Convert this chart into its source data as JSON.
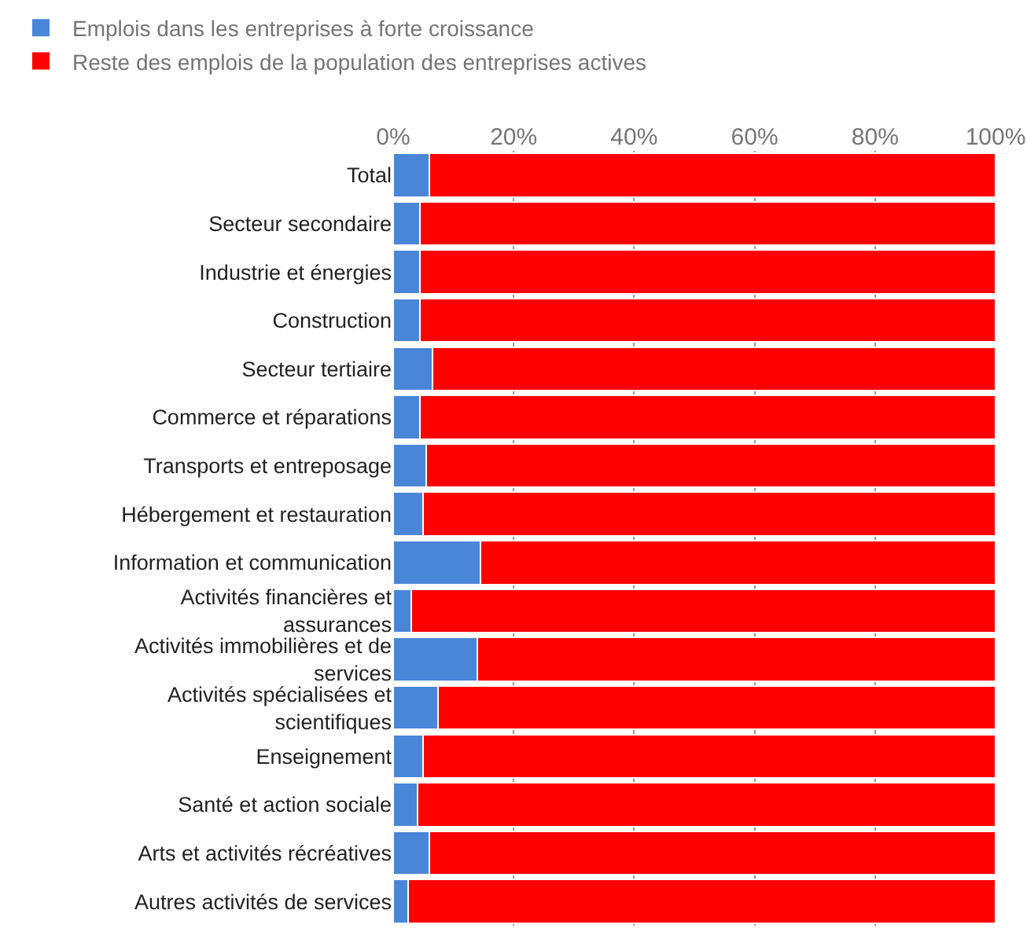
{
  "chart_data": {
    "type": "bar",
    "orientation": "horizontal",
    "stacked": true,
    "categories": [
      "Total",
      "Secteur secondaire",
      "Industrie et énergies",
      "Construction",
      "Secteur tertiaire",
      "Commerce et réparations",
      "Transports et entreposage",
      "Hébergement et restauration",
      "Information et communication",
      "Activités financières et assurances",
      "Activités immobilières et de services",
      "Activités spécialisées et scientifiques",
      "Enseignement",
      "Santé et action sociale",
      "Arts et activités récréatives",
      "Autres activités de services"
    ],
    "series": [
      {
        "name": "Emplois dans les entreprises à forte croissance",
        "color": "#4a86d8",
        "values": [
          6,
          4.5,
          4.5,
          4.5,
          6.5,
          4.5,
          5.5,
          5,
          14.5,
          3,
          14,
          7.5,
          5,
          4,
          6,
          2.5
        ]
      },
      {
        "name": "Reste des emplois de la population des entreprises actives",
        "color": "#ff0000",
        "values": [
          94,
          95.5,
          95.5,
          95.5,
          93.5,
          95.5,
          94.5,
          95,
          85.5,
          97,
          86,
          92.5,
          95,
          96,
          94,
          97.5
        ]
      }
    ],
    "xlim": [
      0,
      100
    ],
    "xticks": [
      {
        "value": 0,
        "label": "0%"
      },
      {
        "value": 20,
        "label": "20%"
      },
      {
        "value": 40,
        "label": "40%"
      },
      {
        "value": 60,
        "label": "60%"
      },
      {
        "value": 80,
        "label": "80%"
      },
      {
        "value": 100,
        "label": "100%"
      }
    ],
    "grid": "x",
    "legend": "top left"
  }
}
